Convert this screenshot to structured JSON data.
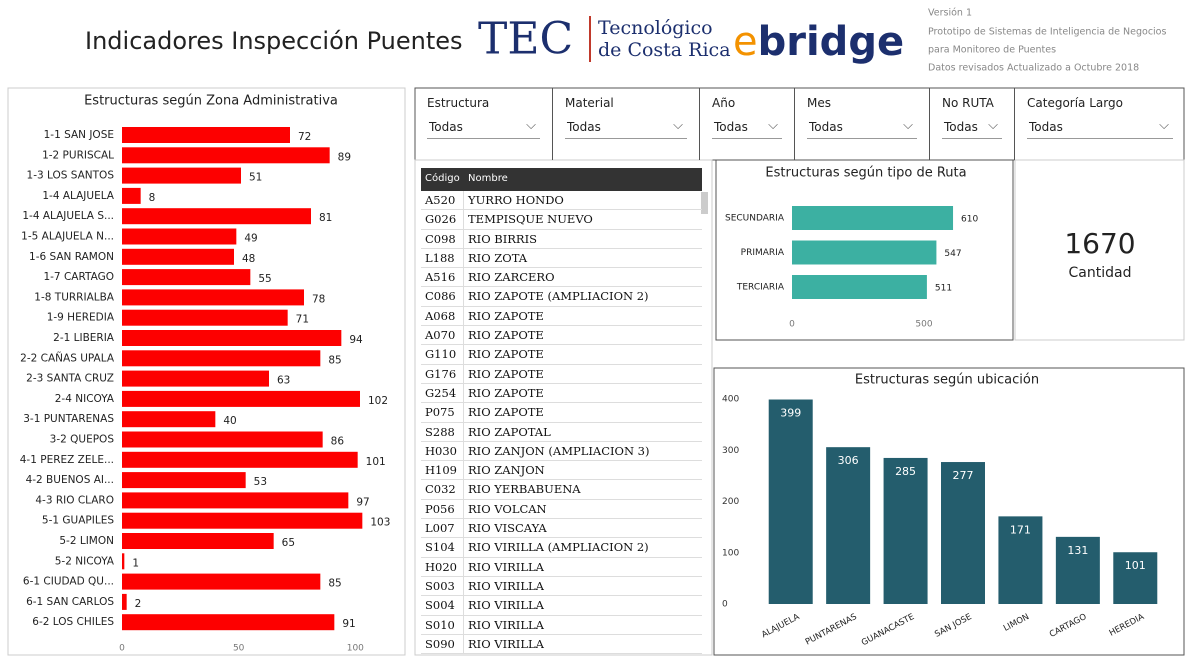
{
  "header": {
    "title": "Indicadores Inspección Puentes",
    "tec_logo": "TEC",
    "tec_name": [
      "Tecnológico",
      "de Costa Rica"
    ],
    "ebridge_logo": [
      "e",
      "bridge"
    ],
    "info": [
      "Versión 1",
      "Prototipo de Sistemas de Inteligencia de Negocios",
      "para Monitoreo de Puentes",
      "Datos revisados Actualizado a Octubre 2018"
    ]
  },
  "filters": [
    {
      "label": "Estructura",
      "value": "Todas"
    },
    {
      "label": "Material",
      "value": "Todas"
    },
    {
      "label": "Año",
      "value": "Todas"
    },
    {
      "label": "Mes",
      "value": "Todas"
    },
    {
      "label": "No RUTA",
      "value": "Todas"
    },
    {
      "label": "Categoría Largo",
      "value": "Todas"
    }
  ],
  "table": {
    "columns": [
      "Código",
      "Nombre"
    ],
    "rows": [
      [
        "A520",
        "YURRO HONDO"
      ],
      [
        "G026",
        "TEMPISQUE NUEVO"
      ],
      [
        "C098",
        "RIO BIRRIS"
      ],
      [
        "L188",
        "RIO ZOTA"
      ],
      [
        "A516",
        "RIO ZARCERO"
      ],
      [
        "C086",
        "RIO ZAPOTE (AMPLIACION 2)"
      ],
      [
        "A068",
        "RIO ZAPOTE"
      ],
      [
        "A070",
        "RIO ZAPOTE"
      ],
      [
        "G110",
        "RIO ZAPOTE"
      ],
      [
        "G176",
        "RIO ZAPOTE"
      ],
      [
        "G254",
        "RIO ZAPOTE"
      ],
      [
        "P075",
        "RIO ZAPOTE"
      ],
      [
        "S288",
        "RIO ZAPOTAL"
      ],
      [
        "H030",
        "RIO ZANJON (AMPLIACION 3)"
      ],
      [
        "H109",
        "RIO ZANJON"
      ],
      [
        "C032",
        "RIO YERBABUENA"
      ],
      [
        "P056",
        "RIO VOLCAN"
      ],
      [
        "L007",
        "RIO VISCAYA"
      ],
      [
        "S104",
        "RIO VIRILLA (AMPLIACION 2)"
      ],
      [
        "H020",
        "RIO VIRILLA"
      ],
      [
        "S003",
        "RIO VIRILLA"
      ],
      [
        "S004",
        "RIO VIRILLA"
      ],
      [
        "S010",
        "RIO VIRILLA"
      ],
      [
        "S090",
        "RIO VIRILLA"
      ]
    ]
  },
  "card": {
    "value": "1670",
    "label": "Cantidad"
  },
  "chart_data": [
    {
      "type": "hbar",
      "title": "Estructuras según Zona Administrativa",
      "color": "#fd0000",
      "categories": [
        "1-1 SAN JOSE",
        "1-2 PURISCAL",
        "1-3 LOS SANTOS",
        "1-4 ALAJUELA",
        "1-4 ALAJUELA S...",
        "1-5 ALAJUELA N...",
        "1-6 SAN RAMON",
        "1-7 CARTAGO",
        "1-8 TURRIALBA",
        "1-9 HEREDIA",
        "2-1 LIBERIA",
        "2-2 CAÑAS UPALA",
        "2-3 SANTA CRUZ",
        "2-4 NICOYA",
        "3-1 PUNTARENAS",
        "3-2 QUEPOS",
        "4-1 PEREZ ZELE...",
        "4-2 BUENOS AI...",
        "4-3 RIO CLARO",
        "5-1 GUAPILES",
        "5-2 LIMON",
        "5-2 NICOYA",
        "6-1 CIUDAD QU...",
        "6-1 SAN CARLOS",
        "6-2 LOS CHILES"
      ],
      "values": [
        72,
        89,
        51,
        8,
        81,
        49,
        48,
        55,
        78,
        71,
        94,
        85,
        63,
        102,
        40,
        86,
        101,
        53,
        97,
        103,
        65,
        1,
        85,
        2,
        91
      ],
      "xlim": [
        0,
        105
      ],
      "xticks": [
        0,
        50,
        100
      ]
    },
    {
      "type": "hbar",
      "title": "Estructuras según tipo de Ruta",
      "color": "#3cb0a2",
      "categories": [
        "SECUNDARIA",
        "PRIMARIA",
        "TERCIARIA"
      ],
      "values": [
        610,
        547,
        511
      ],
      "xlim": [
        0,
        650
      ],
      "xticks": [
        0,
        500
      ]
    },
    {
      "type": "bar",
      "title": "Estructuras según ubicación",
      "color": "#245d6d",
      "categories": [
        "ALAJUELA",
        "PUNTARENAS",
        "GUANACASTE",
        "SAN JOSE",
        "LIMON",
        "CARTAGO",
        "HEREDIA"
      ],
      "values": [
        399,
        306,
        285,
        277,
        171,
        131,
        101
      ],
      "ylim": [
        0,
        400
      ],
      "yticks": [
        0,
        100,
        200,
        300,
        400
      ]
    }
  ]
}
